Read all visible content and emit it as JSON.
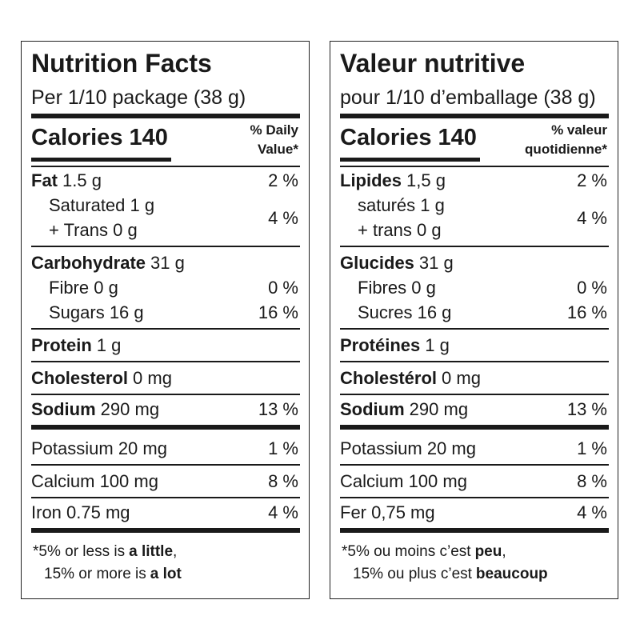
{
  "panels": [
    {
      "title": "Nutrition Facts",
      "serving": "Per 1/10 package (38 g)",
      "calories": "Calories 140",
      "dv_header": [
        "% Daily",
        "Value*"
      ],
      "sections": [
        {
          "rule": "thin",
          "rows": [
            {
              "bold": true,
              "lines": [
                {
                  "name": "Fat",
                  "amount": "1.5 g"
                }
              ],
              "dv": "2 %"
            },
            {
              "indent": true,
              "lines": [
                {
                  "name": "Saturated 1 g"
                },
                {
                  "name": "+ Trans 0 g"
                }
              ],
              "dv": "4 %"
            }
          ]
        },
        {
          "rule": "thin",
          "rows": [
            {
              "bold": true,
              "lines": [
                {
                  "name": "Carbohydrate",
                  "amount": "31 g"
                }
              ]
            },
            {
              "indent": true,
              "lines": [
                {
                  "name": "Fibre 0 g"
                }
              ],
              "dv": "0 %"
            },
            {
              "indent": true,
              "lines": [
                {
                  "name": "Sugars 16 g"
                }
              ],
              "dv": "16 %"
            }
          ]
        },
        {
          "rule": "thin",
          "rows": [
            {
              "bold": true,
              "lines": [
                {
                  "name": "Protein",
                  "amount": "1 g"
                }
              ]
            }
          ]
        },
        {
          "rule": "thin",
          "rows": [
            {
              "bold": true,
              "lines": [
                {
                  "name": "Cholesterol",
                  "amount": "0 mg"
                }
              ]
            }
          ]
        },
        {
          "rule": "thick",
          "rows": [
            {
              "bold": true,
              "lines": [
                {
                  "name": "Sodium",
                  "amount": "290 mg"
                }
              ],
              "dv": "13 %"
            }
          ]
        },
        {
          "rule": "thin",
          "rows": [
            {
              "lines": [
                {
                  "name": "Potassium 20 mg"
                }
              ],
              "dv": "1 %"
            }
          ]
        },
        {
          "rule": "thin",
          "rows": [
            {
              "lines": [
                {
                  "name": "Calcium 100 mg"
                }
              ],
              "dv": "8 %"
            }
          ]
        },
        {
          "rule": "thick",
          "rows": [
            {
              "lines": [
                {
                  "name": "Iron 0.75 mg"
                }
              ],
              "dv": "4 %"
            }
          ]
        }
      ],
      "footnote": [
        [
          {
            "text": "*5% or less is"
          },
          {
            "text": "a little",
            "bold": true
          },
          {
            "text": ","
          }
        ],
        [
          {
            "text": "15% or more is"
          },
          {
            "text": "a lot",
            "bold": true
          }
        ]
      ]
    },
    {
      "title": "Valeur nutritive",
      "serving": "pour 1/10 d’emballage (38 g)",
      "calories": "Calories 140",
      "dv_header": [
        "% valeur",
        "quotidienne*"
      ],
      "sections": [
        {
          "rule": "thin",
          "rows": [
            {
              "bold": true,
              "lines": [
                {
                  "name": "Lipides",
                  "amount": "1,5 g"
                }
              ],
              "dv": "2 %"
            },
            {
              "indent": true,
              "lines": [
                {
                  "name": "saturés 1 g"
                },
                {
                  "name": "+ trans 0 g"
                }
              ],
              "dv": "4 %"
            }
          ]
        },
        {
          "rule": "thin",
          "rows": [
            {
              "bold": true,
              "lines": [
                {
                  "name": "Glucides",
                  "amount": "31 g"
                }
              ]
            },
            {
              "indent": true,
              "lines": [
                {
                  "name": "Fibres 0 g"
                }
              ],
              "dv": "0 %"
            },
            {
              "indent": true,
              "lines": [
                {
                  "name": "Sucres 16 g"
                }
              ],
              "dv": "16 %"
            }
          ]
        },
        {
          "rule": "thin",
          "rows": [
            {
              "bold": true,
              "lines": [
                {
                  "name": "Protéines",
                  "amount": "1 g"
                }
              ]
            }
          ]
        },
        {
          "rule": "thin",
          "rows": [
            {
              "bold": true,
              "lines": [
                {
                  "name": "Cholestérol",
                  "amount": "0 mg"
                }
              ]
            }
          ]
        },
        {
          "rule": "thick",
          "rows": [
            {
              "bold": true,
              "lines": [
                {
                  "name": "Sodium",
                  "amount": "290 mg"
                }
              ],
              "dv": "13 %"
            }
          ]
        },
        {
          "rule": "thin",
          "rows": [
            {
              "lines": [
                {
                  "name": "Potassium 20 mg"
                }
              ],
              "dv": "1 %"
            }
          ]
        },
        {
          "rule": "thin",
          "rows": [
            {
              "lines": [
                {
                  "name": "Calcium 100 mg"
                }
              ],
              "dv": "8 %"
            }
          ]
        },
        {
          "rule": "thick",
          "rows": [
            {
              "lines": [
                {
                  "name": "Fer 0,75 mg"
                }
              ],
              "dv": "4 %"
            }
          ]
        }
      ],
      "footnote": [
        [
          {
            "text": "*5% ou moins c’est"
          },
          {
            "text": "peu",
            "bold": true
          },
          {
            "text": ","
          }
        ],
        [
          {
            "text": "15% ou plus c’est"
          },
          {
            "text": "beaucoup",
            "bold": true
          }
        ]
      ]
    }
  ]
}
